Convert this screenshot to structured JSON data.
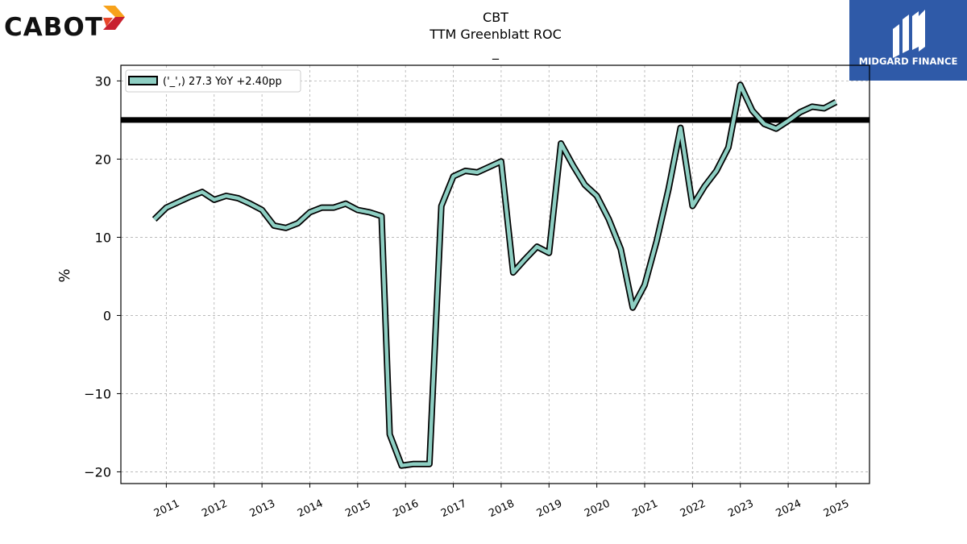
{
  "brand": {
    "left_logo_text": "CABOT",
    "left_logo_colors": [
      "#f7a21b",
      "#e8462a",
      "#c8202f"
    ],
    "right_logo_text": "MIDGARD FINANCE",
    "right_logo_bg": "#2f5aa8"
  },
  "chart_data": {
    "type": "line",
    "title": "CBT",
    "subtitle": "TTM Greenblatt ROC",
    "subtitle2": "_",
    "xlabel": "",
    "ylabel": "%",
    "ylim": [
      -21.5,
      32
    ],
    "xlim": [
      2010.05,
      2025.7
    ],
    "yticks": [
      30,
      20,
      10,
      0,
      -10,
      -20
    ],
    "ytick_labels": [
      "30",
      "20",
      "10",
      "0",
      "−10",
      "−20"
    ],
    "xticks": [
      2011,
      2012,
      2013,
      2014,
      2015,
      2016,
      2017,
      2018,
      2019,
      2020,
      2021,
      2022,
      2023,
      2024,
      2025
    ],
    "xtick_labels": [
      "2011",
      "2012",
      "2013",
      "2014",
      "2015",
      "2016",
      "2017",
      "2018",
      "2019",
      "2020",
      "2021",
      "2022",
      "2023",
      "2024",
      "2025"
    ],
    "grid": true,
    "legend": {
      "position": "top-left",
      "label": "('_',) 27.3 YoY +2.40pp"
    },
    "hline": {
      "y": 25,
      "color": "#000000"
    },
    "series": [
      {
        "name": "('_',) 27.3 YoY +2.40pp",
        "color": "#8ecfc3",
        "edge_color": "#000000",
        "x": [
          2010.75,
          2011.0,
          2011.25,
          2011.5,
          2011.75,
          2012.0,
          2012.25,
          2012.5,
          2012.75,
          2013.0,
          2013.25,
          2013.5,
          2013.75,
          2014.0,
          2014.25,
          2014.5,
          2014.75,
          2015.0,
          2015.25,
          2015.5,
          2015.67,
          2015.92,
          2016.17,
          2016.5,
          2016.75,
          2017.0,
          2017.25,
          2017.5,
          2017.75,
          2018.0,
          2018.25,
          2018.5,
          2018.75,
          2019.0,
          2019.25,
          2019.5,
          2019.75,
          2020.0,
          2020.25,
          2020.5,
          2020.75,
          2021.0,
          2021.25,
          2021.5,
          2021.75,
          2022.0,
          2022.25,
          2022.5,
          2022.75,
          2023.0,
          2023.25,
          2023.5,
          2023.75,
          2024.0,
          2024.25,
          2024.5,
          2024.75,
          2025.0
        ],
        "y": [
          12.3,
          13.8,
          14.5,
          15.2,
          15.8,
          14.8,
          15.3,
          15.0,
          14.3,
          13.5,
          11.5,
          11.2,
          11.8,
          13.2,
          13.8,
          13.8,
          14.3,
          13.5,
          13.2,
          12.7,
          -15.2,
          -19.2,
          -19.0,
          -19.0,
          14.0,
          17.8,
          18.5,
          18.3,
          19.0,
          19.7,
          5.5,
          7.2,
          8.8,
          8.0,
          22.0,
          19.2,
          16.7,
          15.3,
          12.3,
          8.5,
          1.0,
          3.9,
          9.5,
          16.2,
          24.0,
          14.0,
          16.5,
          18.5,
          21.5,
          29.5,
          26.2,
          24.5,
          23.9,
          24.9,
          26.0,
          26.7,
          26.5,
          27.3
        ]
      }
    ]
  }
}
